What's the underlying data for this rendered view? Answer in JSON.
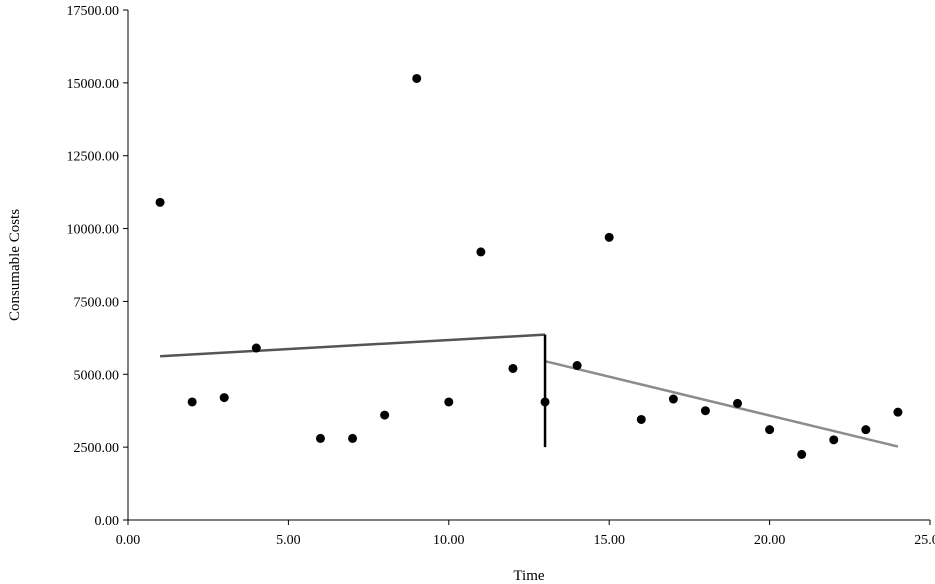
{
  "chart_data": {
    "type": "scatter",
    "xlabel": "Time",
    "ylabel": "Consumable Costs",
    "xlim": [
      0,
      25
    ],
    "ylim": [
      0,
      17500
    ],
    "xticks": [
      "0.00",
      "5.00",
      "10.00",
      "15.00",
      "20.00",
      "25.00"
    ],
    "xtick_values": [
      0,
      5,
      10,
      15,
      20,
      25
    ],
    "yticks": [
      "0.00",
      "2500.00",
      "5000.00",
      "7500.00",
      "10000.00",
      "12500.00",
      "15000.00",
      "17500.00"
    ],
    "ytick_values": [
      0,
      2500,
      5000,
      7500,
      10000,
      12500,
      15000,
      17500
    ],
    "grid": false,
    "series": [
      {
        "points": [
          {
            "x": 1,
            "y": 10900
          },
          {
            "x": 2,
            "y": 4050
          },
          {
            "x": 3,
            "y": 4200
          },
          {
            "x": 4,
            "y": 5900
          },
          {
            "x": 6,
            "y": 2800
          },
          {
            "x": 7,
            "y": 2800
          },
          {
            "x": 8,
            "y": 3600
          },
          {
            "x": 9,
            "y": 15150
          },
          {
            "x": 10,
            "y": 4050
          },
          {
            "x": 11,
            "y": 9200
          },
          {
            "x": 12,
            "y": 5200
          },
          {
            "x": 13,
            "y": 4050
          },
          {
            "x": 14,
            "y": 5300
          },
          {
            "x": 15,
            "y": 9700
          },
          {
            "x": 16,
            "y": 3450
          },
          {
            "x": 17,
            "y": 4150
          },
          {
            "x": 18,
            "y": 3750
          },
          {
            "x": 19,
            "y": 4000
          },
          {
            "x": 20,
            "y": 3100
          },
          {
            "x": 21,
            "y": 2250
          },
          {
            "x": 22,
            "y": 2750
          },
          {
            "x": 23,
            "y": 3100
          },
          {
            "x": 24,
            "y": 3700
          }
        ],
        "color": "#000000"
      }
    ],
    "trend_lines": [
      {
        "x": [
          1,
          13
        ],
        "y": [
          5620,
          6360
        ],
        "color": "#555555"
      },
      {
        "x": [
          13,
          24
        ],
        "y": [
          5450,
          2520
        ],
        "color": "#8c8c8c"
      }
    ],
    "intervention_line": {
      "x": 13,
      "y": [
        2500,
        6360
      ],
      "color": "#000000"
    }
  }
}
